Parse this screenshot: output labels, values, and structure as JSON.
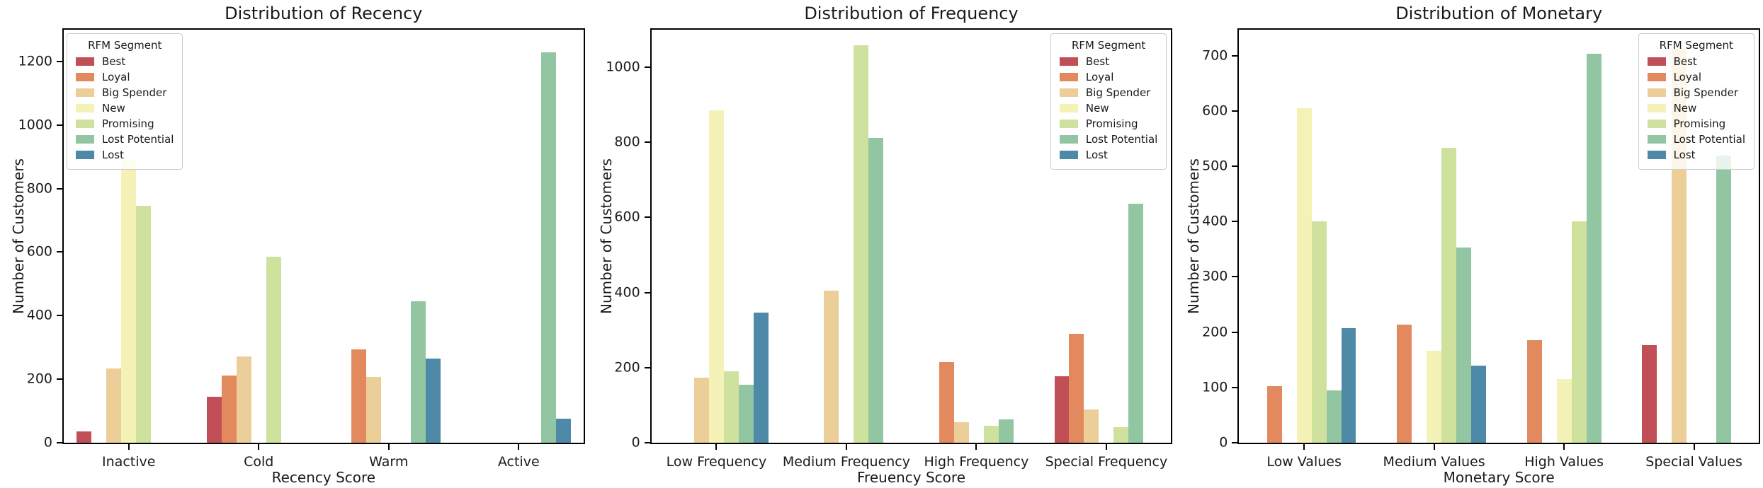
{
  "figure": {
    "background_color": "#ffffff",
    "text_color": "#1a1a1a",
    "axis_color": "#000000"
  },
  "legend": {
    "title": "RFM Segment"
  },
  "rfm_segments": [
    {
      "label": "Best",
      "color": "#c04f57"
    },
    {
      "label": "Loyal",
      "color": "#e28a5e"
    },
    {
      "label": "Big Spender",
      "color": "#ebce98"
    },
    {
      "label": "New",
      "color": "#f4f2b6"
    },
    {
      "label": "Promising",
      "color": "#cee29d"
    },
    {
      "label": "Lost Potential",
      "color": "#92c5a2"
    },
    {
      "label": "Lost",
      "color": "#4e89a8"
    }
  ],
  "chart_data": [
    {
      "type": "bar",
      "title": "Distribution of Recency",
      "xlabel": "Recency Score",
      "ylabel": "Number of Customers",
      "categories": [
        "Inactive",
        "Cold",
        "Warm",
        "Active"
      ],
      "yticks": [
        0,
        200,
        400,
        600,
        800,
        1000,
        1200
      ],
      "ylim": [
        0,
        1300
      ],
      "grid": false,
      "legend_position": "upper-left",
      "series": [
        {
          "name": "Best",
          "values": [
            35,
            145,
            0,
            0
          ]
        },
        {
          "name": "Loyal",
          "values": [
            0,
            212,
            293,
            0
          ]
        },
        {
          "name": "Big Spender",
          "values": [
            234,
            271,
            206,
            0
          ]
        },
        {
          "name": "New",
          "values": [
            888,
            0,
            0,
            0
          ]
        },
        {
          "name": "Promising",
          "values": [
            746,
            585,
            0,
            0
          ]
        },
        {
          "name": "Lost Potential",
          "values": [
            0,
            0,
            446,
            1228
          ]
        },
        {
          "name": "Lost",
          "values": [
            0,
            0,
            266,
            76
          ]
        }
      ]
    },
    {
      "type": "bar",
      "title": "Distribution of Frequency",
      "xlabel": "Freuency Score",
      "ylabel": "Number of Customers",
      "categories": [
        "Low Frequency",
        "Medium Frequency",
        "High Frequency",
        "Special Frequency"
      ],
      "yticks": [
        0,
        200,
        400,
        600,
        800,
        1000
      ],
      "ylim": [
        0,
        1100
      ],
      "grid": false,
      "legend_position": "upper-right",
      "series": [
        {
          "name": "Best",
          "values": [
            0,
            0,
            0,
            178
          ]
        },
        {
          "name": "Loyal",
          "values": [
            0,
            0,
            214,
            291
          ]
        },
        {
          "name": "Big Spender",
          "values": [
            174,
            405,
            55,
            88
          ]
        },
        {
          "name": "New",
          "values": [
            886,
            0,
            0,
            0
          ]
        },
        {
          "name": "Promising",
          "values": [
            191,
            1058,
            45,
            41
          ]
        },
        {
          "name": "Lost Potential",
          "values": [
            154,
            812,
            62,
            637
          ]
        },
        {
          "name": "Lost",
          "values": [
            347,
            0,
            0,
            0
          ]
        }
      ]
    },
    {
      "type": "bar",
      "title": "Distribution of Monetary",
      "xlabel": "Monetary Score",
      "ylabel": "Number of Customers",
      "categories": [
        "Low Values",
        "Medium Values",
        "High Values",
        "Special Values"
      ],
      "yticks": [
        0,
        100,
        200,
        300,
        400,
        500,
        600,
        700
      ],
      "ylim": [
        0,
        747
      ],
      "grid": false,
      "legend_position": "upper-right",
      "series": [
        {
          "name": "Best",
          "values": [
            0,
            0,
            0,
            177
          ]
        },
        {
          "name": "Loyal",
          "values": [
            102,
            214,
            186,
            0
          ]
        },
        {
          "name": "Big Spender",
          "values": [
            0,
            0,
            0,
            712
          ]
        },
        {
          "name": "New",
          "values": [
            605,
            166,
            115,
            0
          ]
        },
        {
          "name": "Promising",
          "values": [
            401,
            533,
            400,
            0
          ]
        },
        {
          "name": "Lost Potential",
          "values": [
            95,
            353,
            704,
            519
          ]
        },
        {
          "name": "Lost",
          "values": [
            207,
            139,
            0,
            0
          ]
        }
      ]
    }
  ]
}
